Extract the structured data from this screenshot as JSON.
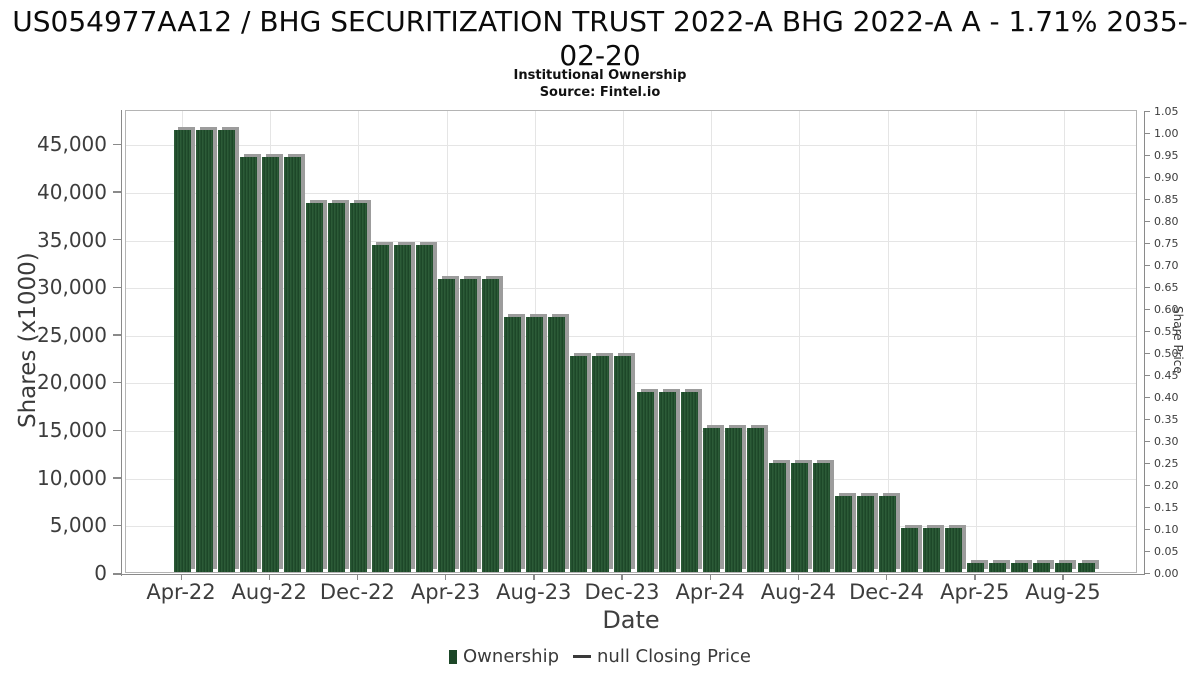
{
  "header": {
    "title_line1": "US054977AA12 / BHG SECURITIZATION TRUST 2022-A BHG 2022-A A - 1.71% 2035-",
    "title_line2": "02-20",
    "subtitle": "Institutional Ownership",
    "source": "Source: Fintel.io"
  },
  "chart_data": {
    "type": "bar",
    "title": "US054977AA12 / BHG SECURITIZATION TRUST 2022-A BHG 2022-A A - 1.71% 2035-02-20",
    "subtitle": "Institutional Ownership",
    "source": "Source: Fintel.io",
    "xlabel": "Date",
    "ylabel_left": "Shares (x1000)",
    "ylabel_right": "Share Price",
    "grid": true,
    "legend_position": "bottom-center",
    "ylim_left": [
      0,
      48600
    ],
    "ylim_right": [
      0,
      1.05
    ],
    "categories": [
      "Apr-22",
      "May-22",
      "Jun-22",
      "Jul-22",
      "Aug-22",
      "Sep-22",
      "Oct-22",
      "Nov-22",
      "Dec-22",
      "Jan-23",
      "Feb-23",
      "Mar-23",
      "Apr-23",
      "May-23",
      "Jun-23",
      "Jul-23",
      "Aug-23",
      "Sep-23",
      "Oct-23",
      "Nov-23",
      "Dec-23",
      "Jan-24",
      "Feb-24",
      "Mar-24",
      "Apr-24",
      "May-24",
      "Jun-24",
      "Jul-24",
      "Aug-24",
      "Sep-24",
      "Oct-24",
      "Nov-24",
      "Dec-24",
      "Jan-25",
      "Feb-25",
      "Mar-25",
      "Apr-25",
      "May-25",
      "Jun-25",
      "Jul-25",
      "Aug-25",
      "Sep-25"
    ],
    "series": [
      {
        "name": "Ownership",
        "type": "bar",
        "axis": "left",
        "values": [
          46400,
          46400,
          46400,
          43600,
          43600,
          43600,
          38700,
          38700,
          38700,
          34300,
          34300,
          34300,
          30800,
          30800,
          30800,
          26800,
          26800,
          26800,
          22700,
          22700,
          22700,
          18900,
          18900,
          18900,
          15100,
          15100,
          15100,
          11400,
          11400,
          11400,
          8000,
          8000,
          8000,
          4600,
          4600,
          4600,
          900,
          900,
          900,
          900,
          900,
          900
        ]
      },
      {
        "name": "null Closing Price",
        "type": "line",
        "axis": "right",
        "values": []
      }
    ],
    "x_tick_indices": [
      0,
      4,
      8,
      12,
      16,
      20,
      24,
      28,
      32,
      36,
      40
    ],
    "x_tick_labels": [
      "Apr-22",
      "Aug-22",
      "Dec-22",
      "Apr-23",
      "Aug-23",
      "Dec-23",
      "Apr-24",
      "Aug-24",
      "Dec-24",
      "Apr-25",
      "Aug-25"
    ],
    "y_left_tick_values": [
      0,
      5000,
      10000,
      15000,
      20000,
      25000,
      30000,
      35000,
      40000,
      45000
    ],
    "y_left_tick_labels": [
      "0",
      "5,000",
      "10,000",
      "15,000",
      "20,000",
      "25,000",
      "30,000",
      "35,000",
      "40,000",
      "45,000"
    ],
    "y_right_tick_labels": [
      "0.00",
      "0.05",
      "0.10",
      "0.15",
      "0.20",
      "0.25",
      "0.30",
      "0.35",
      "0.40",
      "0.45",
      "0.50",
      "0.55",
      "0.60",
      "0.65",
      "0.70",
      "0.75",
      "0.80",
      "0.85",
      "0.90",
      "0.95",
      "1.00",
      "1.05"
    ],
    "colors": {
      "bar_stripe_dark": "#1d4728",
      "bar_stripe_light": "#2c5b37",
      "bar_shadow": "#9c9c9c",
      "grid": "#e5e5e5",
      "axis": "#8a8a8a",
      "tick_text": "#3d3d3d",
      "legend_line": "#3a3a3a"
    }
  }
}
